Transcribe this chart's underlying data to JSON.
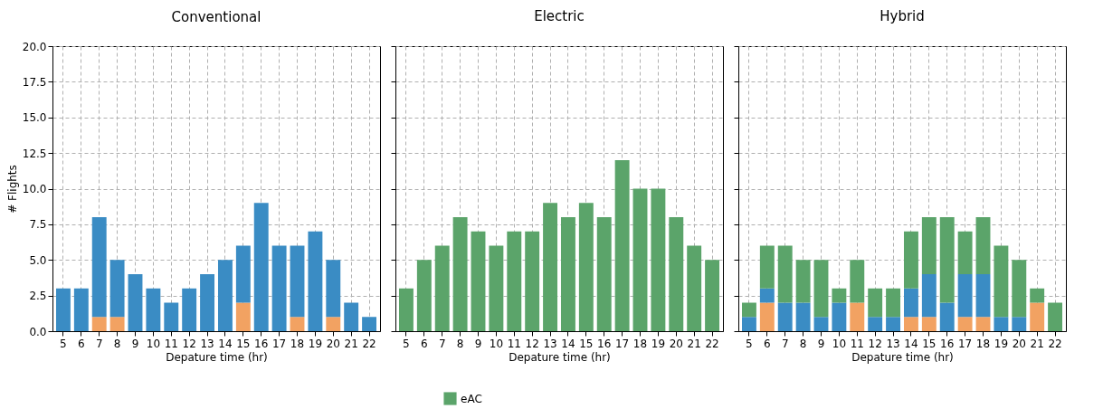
{
  "chart_data": [
    {
      "type": "bar",
      "title": "Conventional",
      "xlabel": "Depature time (hr)",
      "ylabel": "# Flights",
      "stacked": true,
      "grid": true,
      "categories": [
        "5",
        "6",
        "7",
        "8",
        "9",
        "10",
        "11",
        "12",
        "13",
        "14",
        "15",
        "16",
        "17",
        "18",
        "19",
        "20",
        "21",
        "22"
      ],
      "ylim": [
        0,
        20
      ],
      "yticks": [
        {
          "value": 0,
          "label": "0.0"
        },
        2.5,
        {
          "value": 5,
          "label": "5.0"
        },
        7.5,
        {
          "value": 10,
          "label": "10.0"
        },
        12.5,
        {
          "value": 15,
          "label": "15.0"
        },
        17.5,
        {
          "value": 20,
          "label": "20.0"
        }
      ],
      "series": [
        {
          "color": "#f2a262",
          "values": [
            0,
            0,
            1,
            1,
            0,
            0,
            0,
            0,
            0,
            0,
            2,
            0,
            0,
            1,
            0,
            1,
            0,
            0
          ]
        },
        {
          "color": "#3a8cc4",
          "values": [
            3,
            3,
            7,
            4,
            4,
            3,
            2,
            3,
            4,
            5,
            4,
            9,
            6,
            5,
            7,
            4,
            2,
            1
          ]
        }
      ]
    },
    {
      "type": "bar",
      "title": "Electric",
      "xlabel": "Depature time (hr)",
      "stacked": true,
      "grid": true,
      "legend": "bottom",
      "tick_labels": "x",
      "categories": [
        "5",
        "6",
        "7",
        "8",
        "9",
        "10",
        "11",
        "12",
        "13",
        "14",
        "15",
        "16",
        "17",
        "18",
        "19",
        "20",
        "21",
        "22"
      ],
      "ylim": [
        0,
        20
      ],
      "yticks": [
        0,
        2.5,
        5,
        7.5,
        10,
        12.5,
        15,
        17.5,
        20
      ],
      "series": [
        {
          "name": "eAC",
          "color": "#5ba46a",
          "values": [
            3,
            5,
            6,
            8,
            7,
            6,
            7,
            7,
            9,
            8,
            9,
            8,
            12,
            10,
            10,
            8,
            6,
            5
          ]
        }
      ]
    },
    {
      "type": "bar",
      "title": "Hybrid",
      "xlabel": "Depature time (hr)",
      "stacked": true,
      "grid": true,
      "legend": "bottom",
      "tick_labels": "x",
      "categories": [
        "5",
        "6",
        "7",
        "8",
        "9",
        "10",
        "11",
        "12",
        "13",
        "14",
        "15",
        "16",
        "17",
        "18",
        "19",
        "20",
        "21",
        "22"
      ],
      "ylim": [
        0,
        20
      ],
      "yticks": [
        0,
        2.5,
        5,
        7.5,
        10,
        12.5,
        15,
        17.5,
        20
      ],
      "series": [
        {
          "color": "#f2a262",
          "values": [
            0,
            2,
            0,
            0,
            0,
            0,
            2,
            0,
            0,
            1,
            1,
            0,
            1,
            1,
            0,
            0,
            2,
            0
          ]
        },
        {
          "color": "#3a8cc4",
          "values": [
            1,
            1,
            2,
            2,
            1,
            2,
            0,
            1,
            1,
            2,
            3,
            2,
            3,
            3,
            1,
            1,
            0,
            0
          ]
        },
        {
          "name": "eAC",
          "color": "#5ba46a",
          "values": [
            1,
            3,
            4,
            3,
            4,
            1,
            3,
            2,
            2,
            4,
            4,
            6,
            3,
            4,
            5,
            4,
            1,
            2
          ]
        }
      ]
    }
  ]
}
